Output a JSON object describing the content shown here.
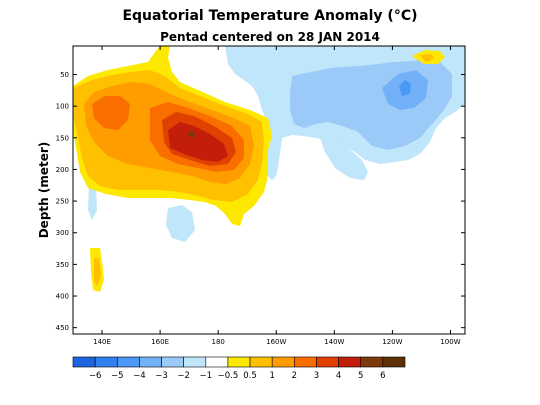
{
  "chart_data": {
    "type": "heatmap",
    "title": "Equatorial Temperature Anomaly (°C)",
    "subtitle": "Pentad centered on 28 JAN 2014",
    "ylabel": "Depth (meter)",
    "xlabel": "",
    "x_range_deg_east": [
      130,
      265
    ],
    "y_range_m": [
      460,
      5
    ],
    "y_inverted": true,
    "x_ticks": [
      {
        "lon": 140,
        "label": "140E"
      },
      {
        "lon": 160,
        "label": "160E"
      },
      {
        "lon": 180,
        "label": "180"
      },
      {
        "lon": 200,
        "label": "160W"
      },
      {
        "lon": 220,
        "label": "140W"
      },
      {
        "lon": 240,
        "label": "120W"
      },
      {
        "lon": 260,
        "label": "100W"
      }
    ],
    "y_ticks": [
      50,
      100,
      150,
      200,
      250,
      300,
      350,
      400,
      450
    ],
    "colorbar": {
      "colors": [
        "#1e64e0",
        "#2f80ee",
        "#4b98f5",
        "#72b0f7",
        "#9bcaf9",
        "#bfe6fa",
        "#ffffff",
        "#fde800",
        "#ffc000",
        "#ff9c00",
        "#fa6e00",
        "#e04000",
        "#c21e0a",
        "#7c3a0c",
        "#5e3006"
      ],
      "labels": [
        "−6",
        "−5",
        "−4",
        "−3",
        "−2",
        "−1",
        "−0.5",
        "0.5",
        "1",
        "2",
        "3",
        "4",
        "5",
        "6"
      ]
    },
    "features": [
      {
        "region": "upper western Pacific",
        "lon_range": [
          130,
          205
        ],
        "depth_range": [
          55,
          250
        ],
        "anomaly": "positive, up to about +5"
      },
      {
        "region": "warm core",
        "lon_range": [
          165,
          195
        ],
        "depth_range": [
          115,
          190
        ],
        "anomaly": "about +5"
      },
      {
        "region": "central/eastern Pacific",
        "lon_range": [
          205,
          265
        ],
        "depth_range": [
          20,
          185
        ],
        "anomaly": "negative, about −1 to −3"
      },
      {
        "region": "near 110W",
        "lon_range": [
          255,
          262
        ],
        "depth_range": [
          60,
          105
        ],
        "anomaly": "about −3"
      },
      {
        "region": "far eastern surface",
        "lon_range": [
          252,
          262
        ],
        "depth_range": [
          5,
          25
        ],
        "anomaly": "about +1 to +2"
      }
    ]
  }
}
